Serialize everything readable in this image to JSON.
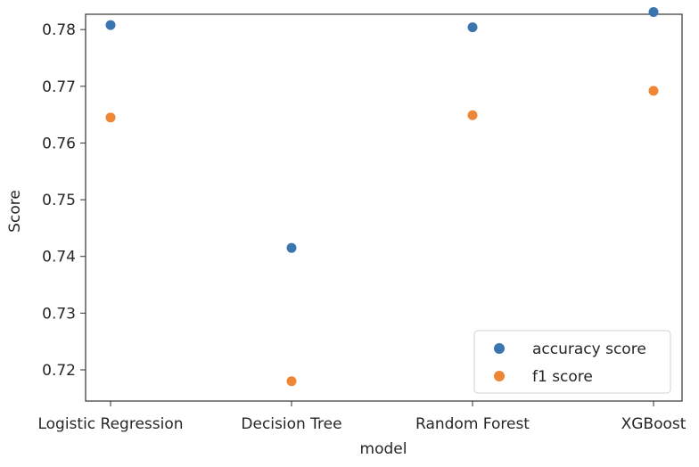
{
  "chart_data": {
    "type": "scatter",
    "title": "",
    "xlabel": "model",
    "ylabel": "Score",
    "categories": [
      "Logistic Regression",
      "Decision Tree",
      "Random Forest",
      "XGBoost"
    ],
    "series": [
      {
        "name": "accuracy score",
        "color": "#3a75b0",
        "values": [
          0.7808,
          0.7415,
          0.7804,
          0.7831
        ]
      },
      {
        "name": "f1 score",
        "color": "#ef8636",
        "values": [
          0.7645,
          0.718,
          0.7649,
          0.7692
        ]
      }
    ],
    "ylim": [
      0.7145,
      0.7827
    ],
    "yticks": [
      0.72,
      0.73,
      0.74,
      0.75,
      0.76,
      0.77,
      0.78
    ],
    "ytick_labels": [
      "0.72",
      "0.73",
      "0.74",
      "0.75",
      "0.76",
      "0.77",
      "0.78"
    ],
    "grid": false,
    "legend_position": "lower-right"
  }
}
